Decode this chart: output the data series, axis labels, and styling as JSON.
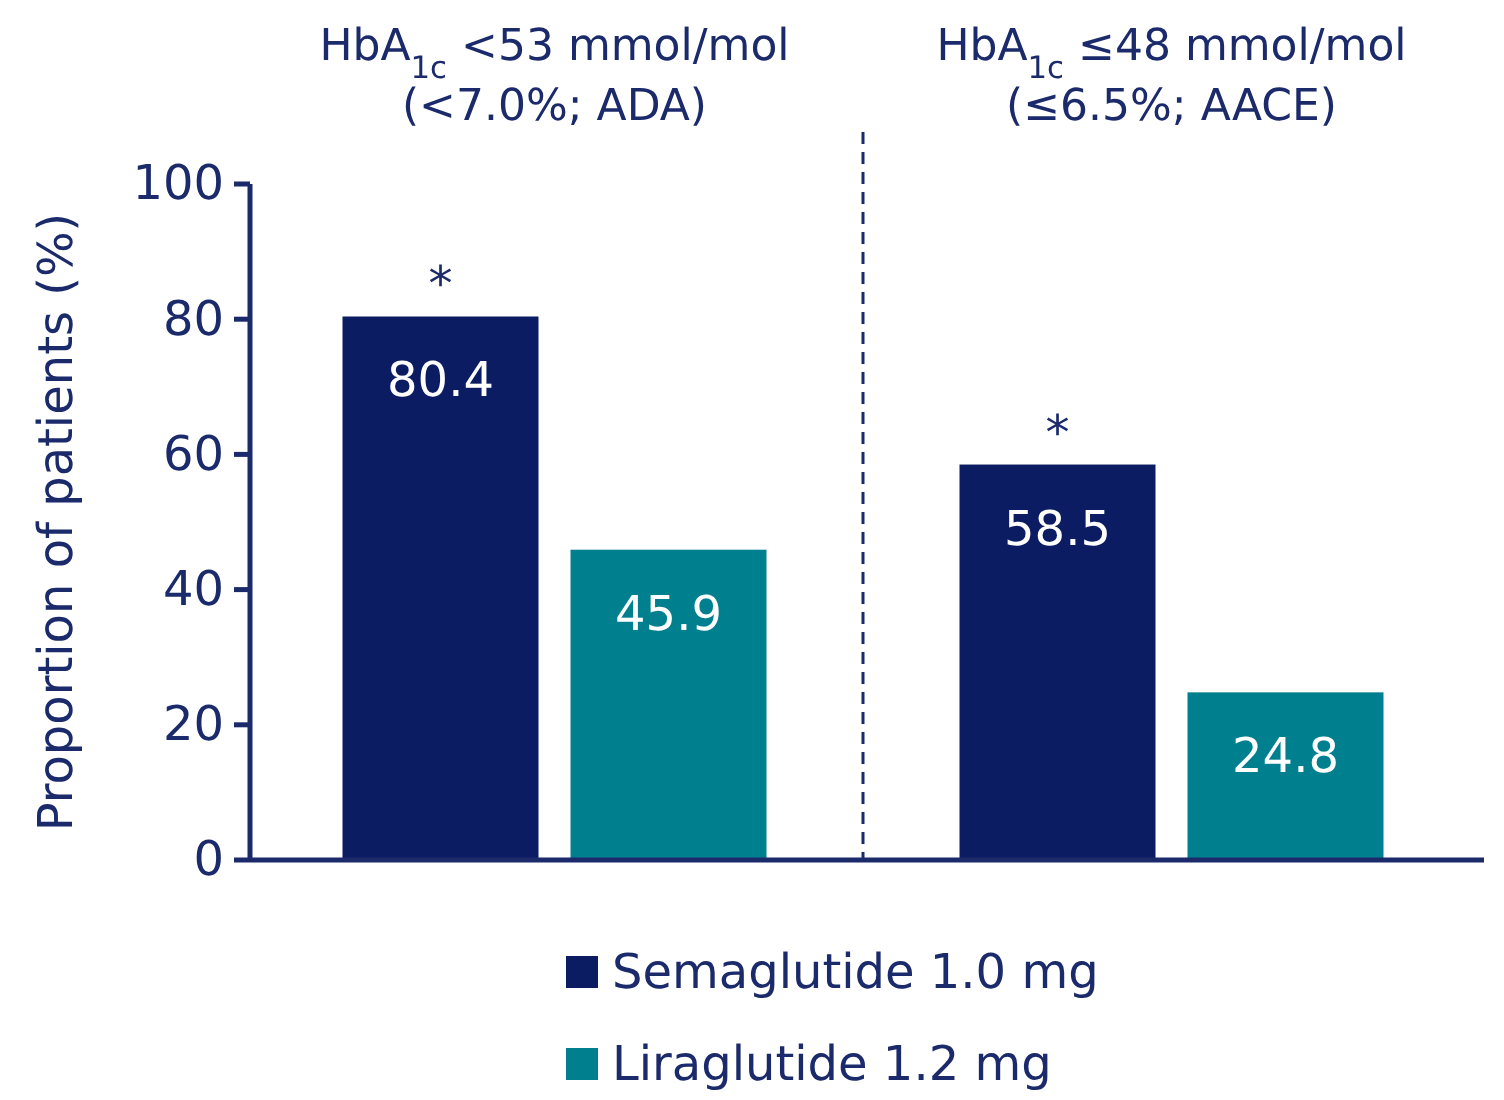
{
  "chart_data": {
    "type": "bar",
    "categories": [
      "HbA$_{1c}$ <53 mmol/mol (<7.0%; ADA)",
      "HbA$_{1c}$ ≤48 mmol/mol (≤6.5%; AACE)"
    ],
    "series": [
      {
        "name": "Semaglutide 1.0 mg",
        "color": "#0c1c62",
        "values": [
          80.4,
          58.5
        ]
      },
      {
        "name": "Liraglutide 1.2 mg",
        "color": "#00808e",
        "values": [
          45.9,
          24.8
        ]
      }
    ],
    "ylabel": "Proportion of patients (%)",
    "ylim": [
      0,
      100
    ],
    "yticks": [
      0,
      20,
      40,
      60,
      80,
      100
    ],
    "grid": false,
    "legend": "bottom",
    "data_labels": true,
    "annotations": [
      "*",
      "*"
    ]
  }
}
